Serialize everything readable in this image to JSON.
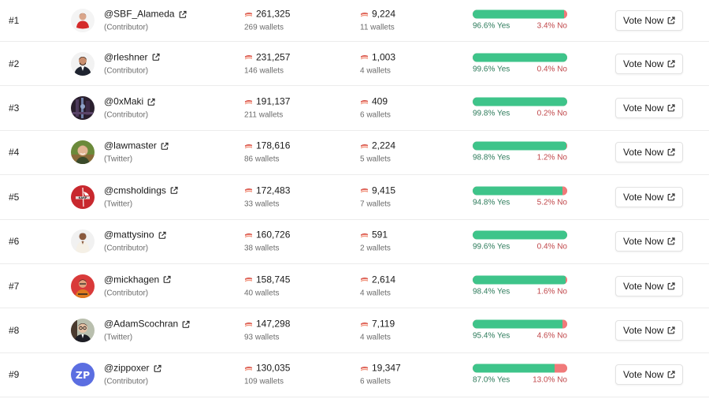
{
  "colors": {
    "yes_bar": "#3ec48a",
    "no_bar": "#f07a7a",
    "yes_text": "#2c7a5a",
    "no_text": "#c0474a"
  },
  "rows": [
    {
      "rank": "#1",
      "handle": "@SBF_Alameda",
      "role": "(Contributor)",
      "avatar": "red-shirt-person",
      "votes_a": "261,325",
      "wallets_a": "269 wallets",
      "votes_b": "9,224",
      "wallets_b": "11 wallets",
      "yes_pct": 96.6,
      "yes_label": "96.6% Yes",
      "no_label": "3.4% No",
      "button": "Vote Now"
    },
    {
      "rank": "#2",
      "handle": "@rleshner",
      "role": "(Contributor)",
      "avatar": "suit-person",
      "votes_a": "231,257",
      "wallets_a": "146 wallets",
      "votes_b": "1,003",
      "wallets_b": "4 wallets",
      "yes_pct": 99.6,
      "yes_label": "99.6% Yes",
      "no_label": "0.4% No",
      "button": "Vote Now"
    },
    {
      "rank": "#3",
      "handle": "@0xMaki",
      "role": "(Contributor)",
      "avatar": "dark-art",
      "votes_a": "191,137",
      "wallets_a": "211 wallets",
      "votes_b": "409",
      "wallets_b": "6 wallets",
      "yes_pct": 99.8,
      "yes_label": "99.8% Yes",
      "no_label": "0.2% No",
      "button": "Vote Now"
    },
    {
      "rank": "#4",
      "handle": "@lawmaster",
      "role": "(Twitter)",
      "avatar": "outdoor-person",
      "votes_a": "178,616",
      "wallets_a": "86 wallets",
      "votes_b": "2,224",
      "wallets_b": "5 wallets",
      "yes_pct": 98.8,
      "yes_label": "98.8% Yes",
      "no_label": "1.2% No",
      "button": "Vote Now"
    },
    {
      "rank": "#5",
      "handle": "@cmsholdings",
      "role": "(Twitter)",
      "avatar": "red-logo",
      "votes_a": "172,483",
      "wallets_a": "33 wallets",
      "votes_b": "9,415",
      "wallets_b": "7 wallets",
      "yes_pct": 94.8,
      "yes_label": "94.8% Yes",
      "no_label": "5.2% No",
      "button": "Vote Now"
    },
    {
      "rank": "#6",
      "handle": "@mattysino",
      "role": "(Contributor)",
      "avatar": "white-shirt-person",
      "votes_a": "160,726",
      "wallets_a": "38 wallets",
      "votes_b": "591",
      "wallets_b": "2 wallets",
      "yes_pct": 99.6,
      "yes_label": "99.6% Yes",
      "no_label": "0.4% No",
      "button": "Vote Now"
    },
    {
      "rank": "#7",
      "handle": "@mickhagen",
      "role": "(Contributor)",
      "avatar": "red-bg-person",
      "votes_a": "158,745",
      "wallets_a": "40 wallets",
      "votes_b": "2,614",
      "wallets_b": "4 wallets",
      "yes_pct": 98.4,
      "yes_label": "98.4% Yes",
      "no_label": "1.6% No",
      "button": "Vote Now"
    },
    {
      "rank": "#8",
      "handle": "@AdamScochran",
      "role": "(Twitter)",
      "avatar": "glasses-person",
      "votes_a": "147,298",
      "wallets_a": "93 wallets",
      "votes_b": "7,119",
      "wallets_b": "4 wallets",
      "yes_pct": 95.4,
      "yes_label": "95.4% Yes",
      "no_label": "4.6% No",
      "button": "Vote Now"
    },
    {
      "rank": "#9",
      "handle": "@zippoxer",
      "role": "(Contributor)",
      "avatar": "zp-initials",
      "avatar_text": "ZP",
      "votes_a": "130,035",
      "wallets_a": "109 wallets",
      "votes_b": "19,347",
      "wallets_b": "6 wallets",
      "yes_pct": 87.0,
      "yes_label": "87.0% Yes",
      "no_label": "13.0% No",
      "button": "Vote Now"
    }
  ]
}
